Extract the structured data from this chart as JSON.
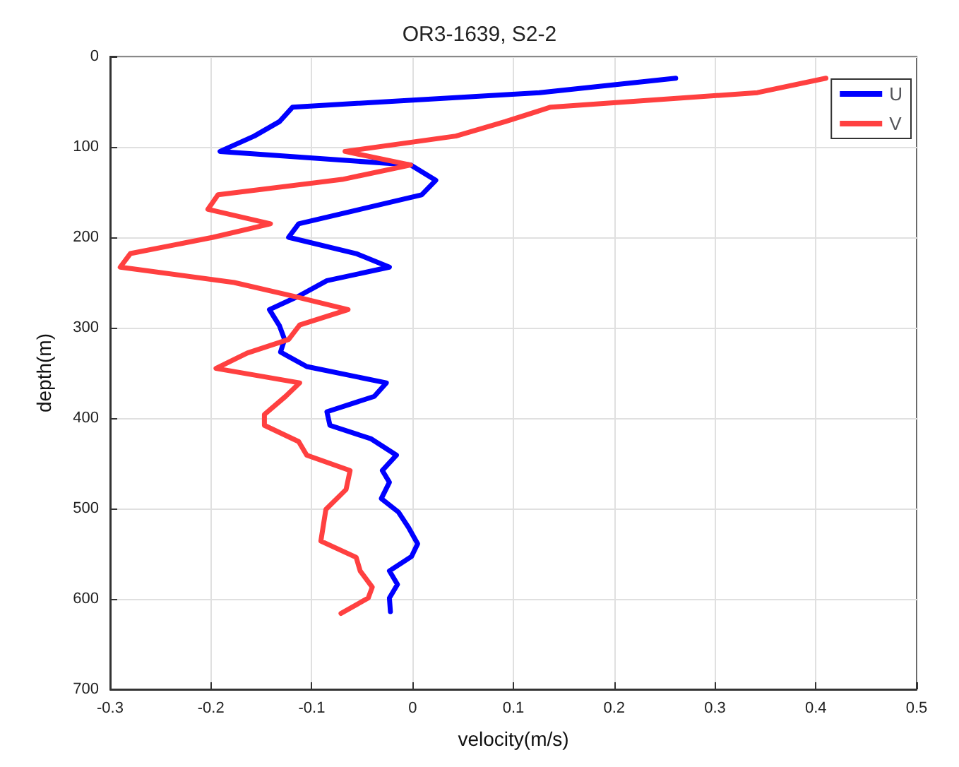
{
  "chart_data": {
    "type": "line",
    "title": "OR3-1639, S2-2",
    "xlabel": "velocity(m/s)",
    "ylabel": "depth(m)",
    "xlim": [
      -0.3,
      0.5
    ],
    "xticks": [
      -0.3,
      -0.2,
      -0.1,
      0,
      0.1,
      0.2,
      0.3,
      0.4,
      0.5
    ],
    "ylim": [
      700,
      0
    ],
    "yticks": [
      0,
      100,
      200,
      300,
      400,
      500,
      600,
      700
    ],
    "grid": true,
    "legend": "top right",
    "marker": "none",
    "line_style": "solid",
    "series": [
      {
        "name": "U",
        "color": "#0000ff",
        "x": [
          0.261,
          0.126,
          -0.119,
          -0.132,
          -0.157,
          -0.191,
          -0.002,
          0.023,
          0.009,
          -0.052,
          -0.113,
          -0.123,
          -0.056,
          -0.023,
          -0.085,
          -0.113,
          -0.142,
          -0.132,
          -0.127,
          -0.131,
          -0.105,
          -0.026,
          -0.038,
          -0.085,
          -0.082,
          -0.041,
          -0.016,
          -0.03,
          -0.023,
          -0.031,
          -0.014,
          -0.004,
          0.005,
          -0.001,
          -0.023,
          -0.015,
          -0.023,
          -0.022
        ],
        "values": [
          24,
          40,
          56,
          72,
          88,
          105,
          120,
          137,
          153,
          169,
          185,
          200,
          218,
          233,
          248,
          265,
          280,
          298,
          313,
          327,
          343,
          361,
          376,
          393,
          408,
          423,
          441,
          458,
          471,
          489,
          504,
          521,
          539,
          553,
          569,
          584,
          599,
          614
        ]
      },
      {
        "name": "V",
        "color": "#ff4040",
        "x": [
          0.41,
          0.342,
          0.137,
          0.092,
          0.043,
          -0.067,
          -0.002,
          -0.07,
          -0.193,
          -0.203,
          -0.141,
          -0.198,
          -0.28,
          -0.29,
          -0.177,
          -0.119,
          -0.064,
          -0.112,
          -0.123,
          -0.164,
          -0.195,
          -0.112,
          -0.126,
          -0.147,
          -0.147,
          -0.113,
          -0.105,
          -0.062,
          -0.066,
          -0.086,
          -0.091,
          -0.056,
          -0.052,
          -0.04,
          -0.044,
          -0.071
        ],
        "values": [
          24,
          40,
          56,
          72,
          88,
          105,
          120,
          136,
          153,
          169,
          185,
          200,
          218,
          233,
          250,
          265,
          280,
          297,
          313,
          328,
          345,
          361,
          376,
          396,
          408,
          426,
          441,
          458,
          479,
          501,
          536,
          554,
          569,
          587,
          599,
          616
        ]
      }
    ]
  }
}
